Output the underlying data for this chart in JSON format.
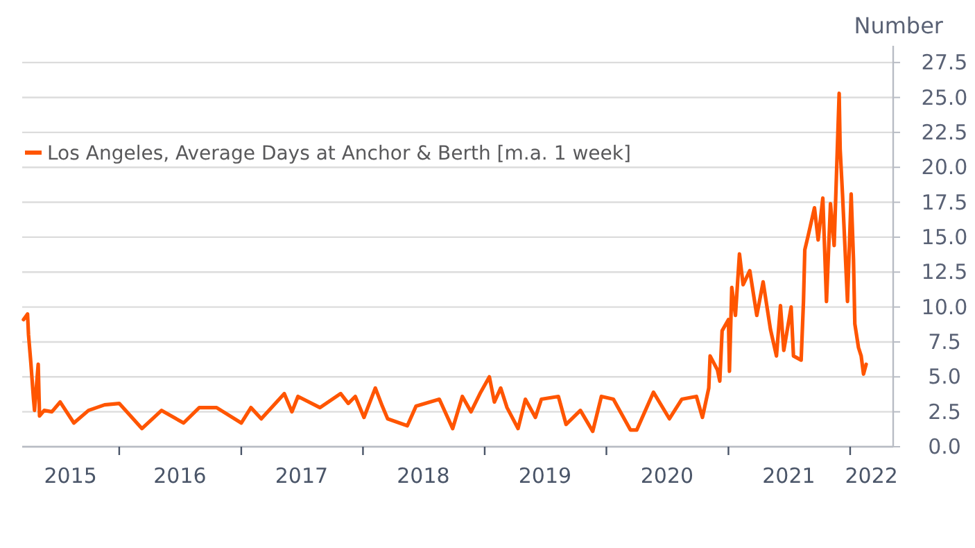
{
  "chart_data": {
    "type": "line",
    "ylabel": "Number",
    "legend": "top left",
    "grid": "y",
    "line_style": "solid",
    "marker": "none",
    "xlim": [
      "2015-03-16",
      "2022-05-10"
    ],
    "xticks": [
      {
        "value": "2015-08-08",
        "label": "2015"
      },
      {
        "value": "2016-01-01",
        "label": null
      },
      {
        "value": "2016-07-01",
        "label": "2016"
      },
      {
        "value": "2017-01-01",
        "label": null
      },
      {
        "value": "2017-07-01",
        "label": "2017"
      },
      {
        "value": "2018-01-01",
        "label": null
      },
      {
        "value": "2018-07-01",
        "label": "2018"
      },
      {
        "value": "2019-01-01",
        "label": null
      },
      {
        "value": "2019-07-01",
        "label": "2019"
      },
      {
        "value": "2020-01-01",
        "label": null
      },
      {
        "value": "2020-07-01",
        "label": "2020"
      },
      {
        "value": "2021-01-01",
        "label": null
      },
      {
        "value": "2021-07-01",
        "label": "2021"
      },
      {
        "value": "2022-01-01",
        "label": null
      },
      {
        "value": "2022-03-06",
        "label": "2022"
      }
    ],
    "ylim": [
      0,
      28.7
    ],
    "yticks": [
      {
        "value": 0,
        "label": "0.0"
      },
      2.5,
      {
        "value": 5,
        "label": "5.0"
      },
      7.5,
      {
        "value": 10,
        "label": "10.0"
      },
      12.5,
      {
        "value": 15,
        "label": "15.0"
      },
      17.5,
      {
        "value": 20,
        "label": "20.0"
      },
      22.5,
      {
        "value": 25,
        "label": "25.0"
      },
      27.5
    ],
    "series": [
      {
        "name": "Los Angeles, Average Days at Anchor & Berth [m.a. 1 week]",
        "color": "#ff5500",
        "x": [
          "2015-03-20",
          "2015-04-01",
          "2015-04-04",
          "2015-04-11",
          "2015-04-19",
          "2015-04-22",
          "2015-05-03",
          "2015-05-07",
          "2015-05-21",
          "2015-06-13",
          "2015-07-08",
          "2015-08-18",
          "2015-10-01",
          "2015-11-18",
          "2016-01-01",
          "2016-03-09",
          "2016-05-07",
          "2016-07-12",
          "2016-08-28",
          "2016-10-19",
          "2017-01-01",
          "2017-01-30",
          "2017-03-02",
          "2017-05-10",
          "2017-06-02",
          "2017-06-20",
          "2017-08-25",
          "2017-10-26",
          "2017-11-18",
          "2017-12-09",
          "2018-01-04",
          "2018-02-07",
          "2018-02-28",
          "2018-03-16",
          "2018-05-14",
          "2018-06-09",
          "2018-08-18",
          "2018-09-27",
          "2018-10-26",
          "2018-11-21",
          "2018-12-20",
          "2019-01-15",
          "2019-01-30",
          "2019-02-18",
          "2019-03-09",
          "2019-04-11",
          "2019-05-03",
          "2019-06-02",
          "2019-06-20",
          "2019-08-10",
          "2019-09-02",
          "2019-10-15",
          "2019-11-21",
          "2019-12-17",
          "2020-01-22",
          "2020-03-13",
          "2020-04-01",
          "2020-05-21",
          "2020-07-08",
          "2020-08-14",
          "2020-09-27",
          "2020-10-15",
          "2020-11-03",
          "2020-11-07",
          "2020-11-29",
          "2020-12-06",
          "2020-12-13",
          "2021-01-01",
          "2021-01-04",
          "2021-01-11",
          "2021-01-22",
          "2021-02-03",
          "2021-02-14",
          "2021-03-06",
          "2021-03-27",
          "2021-04-15",
          "2021-05-07",
          "2021-05-25",
          "2021-06-06",
          "2021-06-16",
          "2021-07-08",
          "2021-07-15",
          "2021-08-07",
          "2021-08-14",
          "2021-08-18",
          "2021-08-28",
          "2021-09-16",
          "2021-09-27",
          "2021-10-11",
          "2021-10-22",
          "2021-11-03",
          "2021-11-14",
          "2021-11-29",
          "2021-12-02",
          "2021-12-09",
          "2021-12-24",
          "2022-01-04",
          "2022-01-11",
          "2022-01-15",
          "2022-01-26",
          "2022-02-03",
          "2022-02-10",
          "2022-02-18"
        ],
        "values": [
          9.1,
          9.5,
          8.0,
          6.0,
          3.4,
          2.6,
          5.9,
          2.2,
          2.6,
          2.5,
          3.2,
          1.7,
          2.6,
          3.0,
          3.1,
          1.3,
          2.6,
          1.7,
          2.8,
          2.8,
          1.7,
          2.8,
          2.0,
          3.8,
          2.5,
          3.6,
          2.8,
          3.8,
          3.1,
          3.6,
          2.1,
          4.2,
          2.9,
          2.0,
          1.5,
          2.9,
          3.4,
          1.3,
          3.6,
          2.5,
          3.9,
          5.0,
          3.2,
          4.2,
          2.8,
          1.3,
          3.4,
          2.1,
          3.4,
          3.6,
          1.6,
          2.6,
          1.1,
          3.6,
          3.4,
          1.2,
          1.2,
          3.9,
          2.0,
          3.4,
          3.6,
          2.1,
          4.2,
          6.5,
          5.5,
          4.7,
          8.3,
          9.1,
          5.4,
          11.4,
          9.4,
          13.8,
          11.6,
          12.6,
          9.4,
          11.8,
          8.4,
          6.5,
          10.1,
          6.9,
          10.0,
          6.5,
          6.2,
          10.4,
          14.1,
          15.1,
          17.1,
          14.8,
          17.8,
          10.4,
          17.4,
          14.4,
          25.3,
          21.3,
          18.1,
          10.4,
          18.1,
          13.4,
          8.8,
          7.1,
          6.5,
          5.2,
          5.9
        ]
      }
    ]
  }
}
